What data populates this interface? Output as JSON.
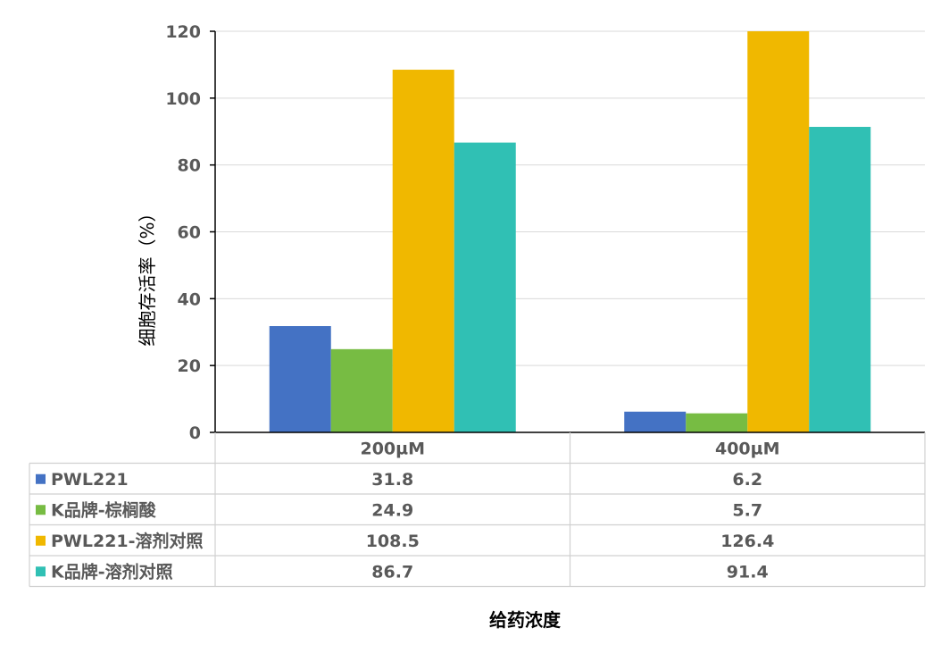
{
  "chart_data": {
    "type": "bar",
    "categories": [
      "200µM",
      "400µM"
    ],
    "series": [
      {
        "name": "PWL221",
        "values": [
          31.8,
          6.2
        ],
        "color": "#4472c4",
        "labels": [
          "31.8",
          "6.2"
        ]
      },
      {
        "name": "K品牌-棕榈酸",
        "values": [
          24.9,
          5.7
        ],
        "color": "#77bc43",
        "labels": [
          "24.9",
          "5.7"
        ]
      },
      {
        "name": "PWL221-溶剂对照",
        "values": [
          108.5,
          126.4
        ],
        "color": "#f0b800",
        "labels": [
          "108.5",
          "126.4"
        ]
      },
      {
        "name": "K品牌-溶剂对照",
        "values": [
          86.7,
          91.4
        ],
        "color": "#30c0b4",
        "labels": [
          "86.7",
          "91.4"
        ]
      }
    ],
    "title": "",
    "xlabel": "给药浓度",
    "ylabel": "细胞存活率（%）",
    "ylim": [
      0,
      120
    ],
    "yticks": [
      "0",
      "20",
      "40",
      "60",
      "80",
      "100",
      "120"
    ],
    "grid": true,
    "legend": "data-table"
  }
}
